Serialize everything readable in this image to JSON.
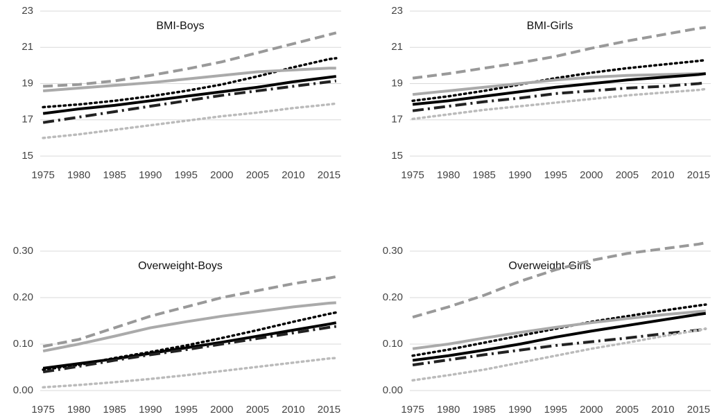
{
  "chart_data": [
    {
      "type": "line",
      "title": "BMI-Boys",
      "x": [
        1975,
        1980,
        1985,
        1990,
        1995,
        2000,
        2005,
        2010,
        2015,
        2016
      ],
      "xlim": [
        1974.6,
        2016.7
      ],
      "xticks": [
        1975,
        1980,
        1985,
        1990,
        1995,
        2000,
        2005,
        2010,
        2015
      ],
      "ylim": [
        15,
        23
      ],
      "yticks": [
        15,
        17,
        19,
        21,
        23
      ],
      "grid": true,
      "series": [
        {
          "color": "#999999",
          "style": "dashed",
          "values": [
            18.85,
            18.95,
            19.15,
            19.45,
            19.8,
            20.2,
            20.7,
            21.2,
            21.7,
            21.8
          ]
        },
        {
          "color": "#000000",
          "style": "dotted",
          "values": [
            17.7,
            17.85,
            18.05,
            18.3,
            18.6,
            18.95,
            19.4,
            19.9,
            20.35,
            20.4
          ]
        },
        {
          "color": "#aaaaaa",
          "style": "solid",
          "values": [
            18.6,
            18.75,
            18.9,
            19.05,
            19.25,
            19.45,
            19.65,
            19.75,
            19.85,
            19.85
          ]
        },
        {
          "color": "#000000",
          "style": "solid",
          "values": [
            17.35,
            17.6,
            17.8,
            18.05,
            18.3,
            18.55,
            18.8,
            19.1,
            19.35,
            19.4
          ]
        },
        {
          "color": "#222222",
          "style": "dashdot",
          "values": [
            16.85,
            17.15,
            17.45,
            17.75,
            18.05,
            18.35,
            18.6,
            18.85,
            19.1,
            19.15
          ]
        },
        {
          "color": "#bbbbbb",
          "style": "dotted",
          "values": [
            16.0,
            16.2,
            16.45,
            16.7,
            16.95,
            17.2,
            17.4,
            17.65,
            17.85,
            17.9
          ]
        }
      ]
    },
    {
      "type": "line",
      "title": "BMI-Girls",
      "x": [
        1975,
        1980,
        1985,
        1990,
        1995,
        2000,
        2005,
        2010,
        2015,
        2016
      ],
      "xlim": [
        1974.6,
        2016.7
      ],
      "xticks": [
        1975,
        1980,
        1985,
        1990,
        1995,
        2000,
        2005,
        2010,
        2015
      ],
      "ylim": [
        15,
        23
      ],
      "yticks": [
        15,
        17,
        19,
        21,
        23
      ],
      "grid": true,
      "series": [
        {
          "color": "#999999",
          "style": "dashed",
          "values": [
            19.3,
            19.55,
            19.85,
            20.15,
            20.5,
            20.95,
            21.35,
            21.7,
            22.05,
            22.1
          ]
        },
        {
          "color": "#000000",
          "style": "dotted",
          "values": [
            18.05,
            18.3,
            18.6,
            18.95,
            19.3,
            19.6,
            19.85,
            20.05,
            20.25,
            20.3
          ]
        },
        {
          "color": "#aaaaaa",
          "style": "solid",
          "values": [
            18.4,
            18.6,
            18.8,
            19.0,
            19.2,
            19.35,
            19.45,
            19.5,
            19.55,
            19.55
          ]
        },
        {
          "color": "#000000",
          "style": "solid",
          "values": [
            17.85,
            18.05,
            18.3,
            18.55,
            18.8,
            19.0,
            19.2,
            19.35,
            19.5,
            19.55
          ]
        },
        {
          "color": "#222222",
          "style": "dashdot",
          "values": [
            17.5,
            17.75,
            18.0,
            18.2,
            18.45,
            18.6,
            18.75,
            18.85,
            19.0,
            19.05
          ]
        },
        {
          "color": "#bbbbbb",
          "style": "dotted",
          "values": [
            17.05,
            17.3,
            17.55,
            17.75,
            17.95,
            18.15,
            18.35,
            18.5,
            18.65,
            18.7
          ]
        }
      ]
    },
    {
      "type": "line",
      "title": "Overweight-Boys",
      "x": [
        1975,
        1980,
        1985,
        1990,
        1995,
        2000,
        2005,
        2010,
        2015,
        2016
      ],
      "xlim": [
        1974.6,
        2016.7
      ],
      "xticks": [
        1975,
        1980,
        1985,
        1990,
        1995,
        2000,
        2005,
        2010,
        2015
      ],
      "ylim": [
        0,
        0.3
      ],
      "yticks": [
        {
          "value": 0,
          "label": "0.00"
        },
        {
          "value": 0.1,
          "label": "0.10"
        },
        {
          "value": 0.2,
          "label": "0.20"
        },
        {
          "value": 0.3,
          "label": "0.30"
        }
      ],
      "grid": true,
      "series": [
        {
          "color": "#999999",
          "style": "dashed",
          "values": [
            0.095,
            0.11,
            0.135,
            0.16,
            0.18,
            0.2,
            0.215,
            0.23,
            0.242,
            0.245
          ]
        },
        {
          "color": "#000000",
          "style": "dotted",
          "values": [
            0.045,
            0.055,
            0.07,
            0.083,
            0.097,
            0.113,
            0.13,
            0.148,
            0.165,
            0.168
          ]
        },
        {
          "color": "#aaaaaa",
          "style": "solid",
          "values": [
            0.085,
            0.1,
            0.117,
            0.135,
            0.148,
            0.16,
            0.17,
            0.18,
            0.188,
            0.189
          ]
        },
        {
          "color": "#000000",
          "style": "solid",
          "values": [
            0.048,
            0.058,
            0.068,
            0.08,
            0.092,
            0.104,
            0.117,
            0.13,
            0.143,
            0.146
          ]
        },
        {
          "color": "#222222",
          "style": "dashdot",
          "values": [
            0.04,
            0.052,
            0.065,
            0.077,
            0.088,
            0.1,
            0.112,
            0.124,
            0.136,
            0.138
          ]
        },
        {
          "color": "#bbbbbb",
          "style": "dotted",
          "values": [
            0.007,
            0.012,
            0.018,
            0.025,
            0.033,
            0.042,
            0.051,
            0.06,
            0.069,
            0.07
          ]
        }
      ]
    },
    {
      "type": "line",
      "title": "Overweight-Girls",
      "x": [
        1975,
        1980,
        1985,
        1990,
        1995,
        2000,
        2005,
        2010,
        2015,
        2016
      ],
      "xlim": [
        1974.6,
        2016.7
      ],
      "xticks": [
        1975,
        1980,
        1985,
        1990,
        1995,
        2000,
        2005,
        2010,
        2015
      ],
      "ylim": [
        0,
        0.3
      ],
      "yticks": [
        {
          "value": 0,
          "label": "0.00"
        },
        {
          "value": 0.1,
          "label": "0.10"
        },
        {
          "value": 0.2,
          "label": "0.20"
        },
        {
          "value": 0.3,
          "label": "0.30"
        }
      ],
      "grid": true,
      "series": [
        {
          "color": "#999999",
          "style": "dashed",
          "values": [
            0.158,
            0.18,
            0.205,
            0.235,
            0.26,
            0.28,
            0.295,
            0.305,
            0.315,
            0.318
          ]
        },
        {
          "color": "#000000",
          "style": "dotted",
          "values": [
            0.075,
            0.088,
            0.103,
            0.118,
            0.133,
            0.148,
            0.16,
            0.172,
            0.183,
            0.185
          ]
        },
        {
          "color": "#aaaaaa",
          "style": "solid",
          "values": [
            0.09,
            0.1,
            0.113,
            0.125,
            0.136,
            0.146,
            0.155,
            0.163,
            0.17,
            0.171
          ]
        },
        {
          "color": "#000000",
          "style": "solid",
          "values": [
            0.065,
            0.075,
            0.087,
            0.1,
            0.115,
            0.128,
            0.14,
            0.152,
            0.164,
            0.166
          ]
        },
        {
          "color": "#222222",
          "style": "dashdot",
          "values": [
            0.055,
            0.066,
            0.077,
            0.087,
            0.097,
            0.105,
            0.113,
            0.122,
            0.13,
            0.133
          ]
        },
        {
          "color": "#bbbbbb",
          "style": "dotted",
          "values": [
            0.022,
            0.033,
            0.045,
            0.06,
            0.075,
            0.09,
            0.103,
            0.117,
            0.13,
            0.133
          ]
        }
      ]
    }
  ]
}
